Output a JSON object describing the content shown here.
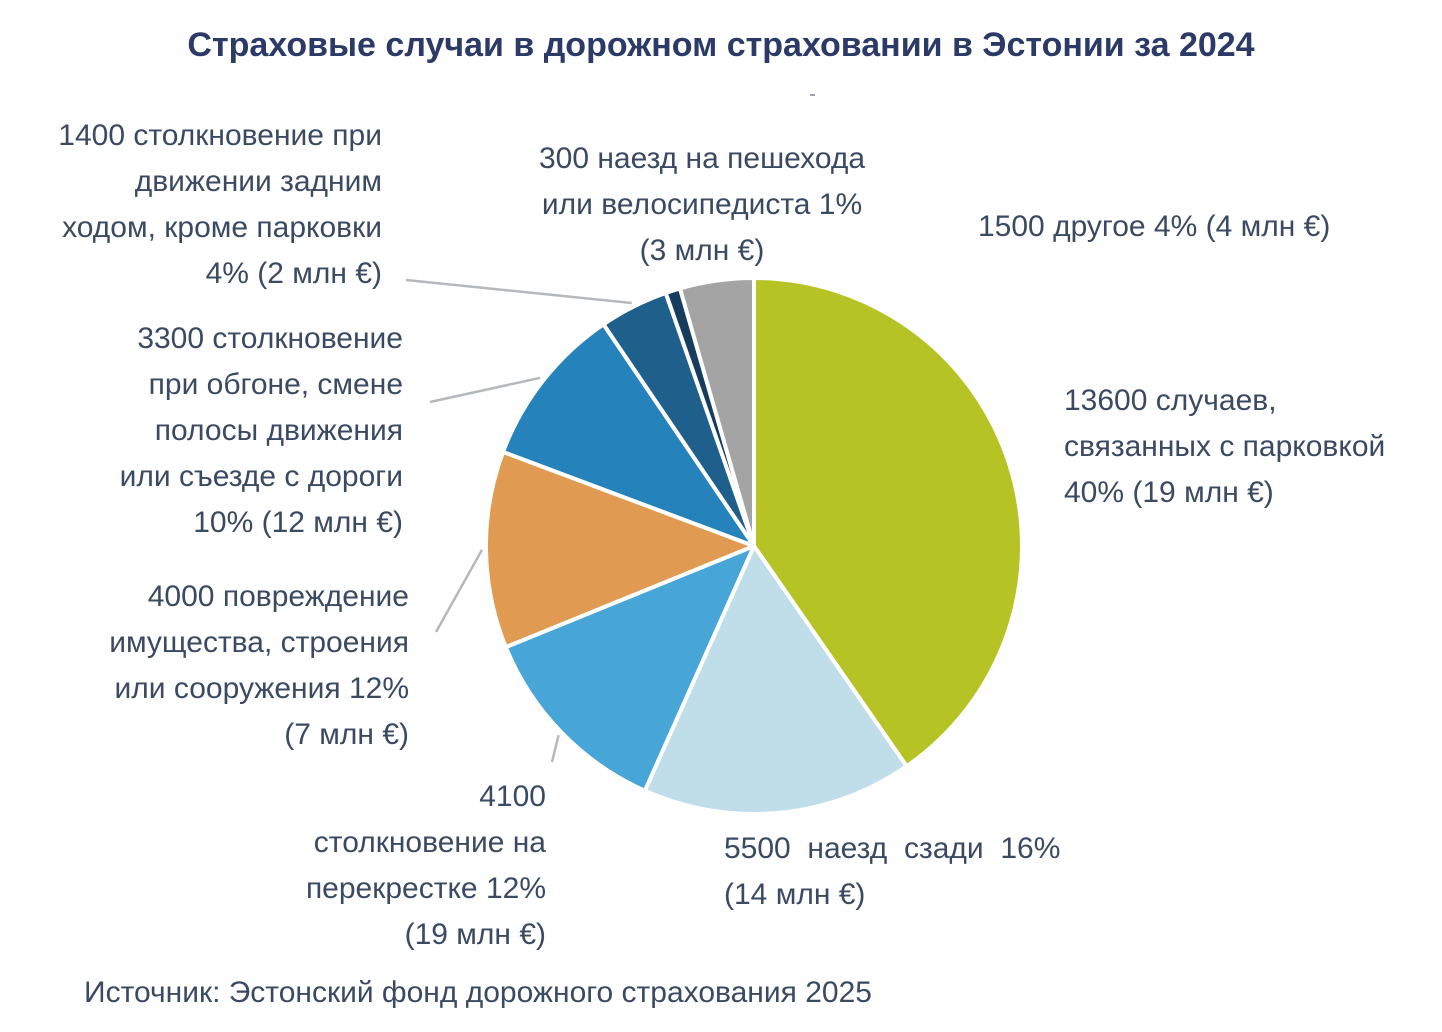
{
  "title": "Страховые случаи в дорожном страховании в Эстонии за 2024",
  "source": "Источник: Эстонский фонд дорожного страхования 2025",
  "chart_data": {
    "type": "pie",
    "title": "Страховые случаи в дорожном страховании в Эстонии за 2024",
    "start_angle_deg": 0,
    "direction": "clockwise",
    "slices": [
      {
        "label_lines": [
          "13600 случаев,",
          "связанных с парковкой",
          "40% (19 млн €)"
        ],
        "cases": 13600,
        "percent": 40,
        "amount_mln_eur": 19,
        "color": "#b5c424"
      },
      {
        "label_lines": [
          "5500  наезд  сзади  16%",
          "(14 млн €)"
        ],
        "cases": 5500,
        "percent": 16,
        "amount_mln_eur": 14,
        "color": "#bfdeea"
      },
      {
        "label_lines": [
          "4100",
          "столкновение на",
          "перекрестке 12%",
          "(19 млн €)"
        ],
        "cases": 4100,
        "percent": 12,
        "amount_mln_eur": 19,
        "color": "#47a5d8"
      },
      {
        "label_lines": [
          "4000 повреждение",
          "имущества, строения",
          "или сооружения 12%",
          "(7 млн €)"
        ],
        "cases": 4000,
        "percent": 12,
        "amount_mln_eur": 7,
        "color": "#e09a52"
      },
      {
        "label_lines": [
          "3300 столкновение",
          "при обгоне, смене",
          "полосы движения",
          "или съезде с дороги",
          "10% (12 млн €)"
        ],
        "cases": 3300,
        "percent": 10,
        "amount_mln_eur": 12,
        "color": "#2682ba"
      },
      {
        "label_lines": [
          "1400 столкновение при",
          "движении задним",
          "ходом, кроме парковки",
          "4% (2 млн €)"
        ],
        "cases": 1400,
        "percent": 4,
        "amount_mln_eur": 2,
        "color": "#1e5f8c"
      },
      {
        "label_lines": [
          "300 наезд на пешехода",
          "или велосипедиста 1%",
          "(3 млн €)"
        ],
        "cases": 300,
        "percent": 1,
        "amount_mln_eur": 3,
        "color": "#173d5e"
      },
      {
        "label_lines": [
          "1500 другое 4% (4 млн €)"
        ],
        "cases": 1500,
        "percent": 4,
        "amount_mln_eur": 4,
        "color": "#a4a4a4"
      }
    ]
  }
}
